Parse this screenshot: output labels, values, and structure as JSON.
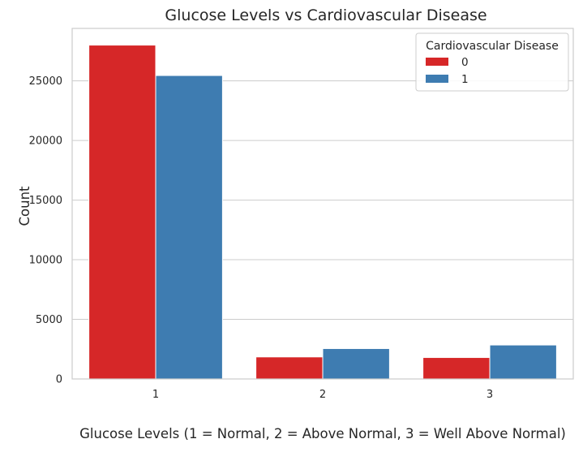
{
  "chart_data": {
    "type": "bar",
    "title": "Glucose Levels vs Cardiovascular Disease",
    "xlabel": "Glucose Levels (1 = Normal, 2 = Above Normal, 3 = Well Above Normal)",
    "ylabel": "Count",
    "categories": [
      "1",
      "2",
      "3"
    ],
    "ylim": [
      0,
      29400
    ],
    "yticks": [
      0,
      5000,
      10000,
      15000,
      20000,
      25000
    ],
    "grid": true,
    "legend": {
      "title": "Cardiovascular Disease",
      "placement": "top-right"
    },
    "series": [
      {
        "name": "0",
        "color": "#d62728",
        "values": [
          28000,
          1850,
          1800
        ]
      },
      {
        "name": "1",
        "color": "#3e7cb1",
        "values": [
          25450,
          2550,
          2850
        ]
      }
    ]
  }
}
